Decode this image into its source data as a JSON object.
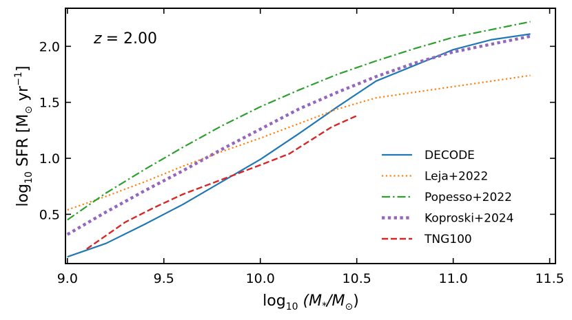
{
  "chart_data": {
    "type": "line",
    "annotation": "z = 2.00",
    "annotation_parts": {
      "var": "z",
      "eq": "= 2.00"
    },
    "xlabel": "log10 (M*/M⊙)",
    "xlabel_parts": {
      "log": "log",
      "sub": "10",
      "rest": " (M",
      "star": "*",
      "slash": "/M",
      "sun": "⊙",
      "close": ")"
    },
    "ylabel": "log10 SFR [M⊙ yr−1]",
    "ylabel_parts": {
      "log": "log",
      "sub": "10",
      "rest": " SFR [M",
      "sun": "⊙",
      "yr": " yr",
      "sup": "−1",
      "close": "]"
    },
    "xlim": [
      8.99,
      11.53
    ],
    "ylim": [
      0.06,
      2.34
    ],
    "xticks": [
      9.0,
      9.5,
      10.0,
      10.5,
      11.0,
      11.5
    ],
    "xtick_labels": [
      "9.0",
      "9.5",
      "10.0",
      "10.5",
      "11.0",
      "11.5"
    ],
    "yticks": [
      0.5,
      1.0,
      1.5,
      2.0
    ],
    "ytick_labels": [
      "0.5",
      "1.0",
      "1.5",
      "2.0"
    ],
    "grid": false,
    "legend_position": "lower-right",
    "series": [
      {
        "name": "DECODE",
        "color": "#1f77b4",
        "style": "solid",
        "x": [
          9.0,
          9.2,
          9.4,
          9.6,
          9.8,
          10.0,
          10.2,
          10.4,
          10.6,
          10.8,
          11.0,
          11.2,
          11.4
        ],
        "y": [
          0.12,
          0.24,
          0.41,
          0.59,
          0.79,
          0.99,
          1.22,
          1.46,
          1.69,
          1.83,
          1.97,
          2.06,
          2.11
        ]
      },
      {
        "name": "Leja+2022",
        "color": "#ff7f0e",
        "style": "dotted",
        "x": [
          9.0,
          9.2,
          9.4,
          9.6,
          9.8,
          10.0,
          10.2,
          10.4,
          10.6,
          10.8,
          11.0,
          11.2,
          11.4
        ],
        "y": [
          0.54,
          0.66,
          0.79,
          0.93,
          1.06,
          1.18,
          1.31,
          1.44,
          1.54,
          1.59,
          1.64,
          1.69,
          1.74
        ]
      },
      {
        "name": "Popesso+2022",
        "color": "#2ca02c",
        "style": "dashdot",
        "x": [
          9.0,
          9.2,
          9.4,
          9.6,
          9.8,
          10.0,
          10.2,
          10.4,
          10.6,
          10.8,
          11.0,
          11.2,
          11.4
        ],
        "y": [
          0.45,
          0.69,
          0.9,
          1.1,
          1.29,
          1.46,
          1.61,
          1.75,
          1.87,
          1.98,
          2.08,
          2.15,
          2.22
        ]
      },
      {
        "name": "Koproski+2024",
        "color": "#9467bd",
        "style": "thickdot",
        "x": [
          9.0,
          9.2,
          9.4,
          9.6,
          9.8,
          10.0,
          10.2,
          10.4,
          10.6,
          10.8,
          11.0,
          11.2,
          11.4
        ],
        "y": [
          0.32,
          0.52,
          0.71,
          0.89,
          1.08,
          1.26,
          1.44,
          1.59,
          1.73,
          1.85,
          1.95,
          2.02,
          2.09
        ]
      },
      {
        "name": "TNG100",
        "color": "#d62728",
        "style": "dashed",
        "x": [
          9.1,
          9.2,
          9.3,
          9.45,
          9.6,
          9.8,
          10.0,
          10.15,
          10.37,
          10.5
        ],
        "y": [
          0.19,
          0.31,
          0.43,
          0.56,
          0.68,
          0.81,
          0.94,
          1.04,
          1.28,
          1.38
        ]
      }
    ]
  }
}
